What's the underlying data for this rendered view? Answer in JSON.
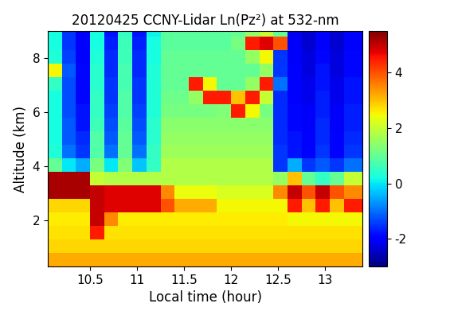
{
  "chart_data": {
    "type": "heatmap",
    "title": "20120425 CCNY-Lidar Ln(Pz²) at 532-nm",
    "x_label": "Local time (hour)",
    "y_label": "Altitude (km)",
    "color": "jet",
    "xlim": [
      10.05,
      13.4
    ],
    "ylim": [
      0.3,
      9.0
    ],
    "xticks": [
      10.5,
      11,
      11.5,
      12,
      12.5,
      13
    ],
    "yticks": [
      2,
      4,
      6,
      8
    ],
    "colorbar_range": [
      -3,
      5.5
    ],
    "colorbar_ticks": [
      -2,
      0,
      2,
      4
    ],
    "x_edges": [
      10.05,
      10.2,
      10.35,
      10.5,
      10.65,
      10.8,
      10.95,
      11.1,
      11.25,
      11.4,
      11.55,
      11.7,
      11.85,
      12.0,
      12.15,
      12.3,
      12.45,
      12.6,
      12.75,
      12.9,
      13.05,
      13.2,
      13.4
    ],
    "y_edges": [
      0.3,
      0.8,
      1.3,
      1.8,
      2.3,
      2.8,
      3.3,
      3.8,
      4.3,
      4.8,
      5.3,
      5.8,
      6.3,
      6.8,
      7.3,
      7.8,
      8.3,
      8.8,
      9.0
    ],
    "cells": [
      [
        3.2,
        3.2,
        3.2,
        3.2,
        3.2,
        3.2,
        3.2,
        3.2,
        3.2,
        3.2,
        3.2,
        3.2,
        3.2,
        3.2,
        3.2,
        3.2,
        3.2,
        3.2,
        3.2,
        3.2,
        3.2,
        3.2
      ],
      [
        2.8,
        2.8,
        2.8,
        2.8,
        2.8,
        2.8,
        2.8,
        2.8,
        2.8,
        2.8,
        2.8,
        2.8,
        2.8,
        2.8,
        2.8,
        2.8,
        2.8,
        2.8,
        2.8,
        2.8,
        2.8,
        2.8
      ],
      [
        2.7,
        2.7,
        2.7,
        4.5,
        2.7,
        2.7,
        2.7,
        2.7,
        2.7,
        2.7,
        2.7,
        2.7,
        2.7,
        2.7,
        2.7,
        2.7,
        2.7,
        2.7,
        2.7,
        2.7,
        2.7,
        2.7
      ],
      [
        2.6,
        2.6,
        2.6,
        5.0,
        3.5,
        2.6,
        2.6,
        2.6,
        2.6,
        2.6,
        2.6,
        2.6,
        2.6,
        2.6,
        2.6,
        2.6,
        2.6,
        2.5,
        2.5,
        2.5,
        2.5,
        2.5
      ],
      [
        2.8,
        2.8,
        2.8,
        5.0,
        4.8,
        4.8,
        4.8,
        4.8,
        4.0,
        3.2,
        3.2,
        3.2,
        2.5,
        2.5,
        2.5,
        2.5,
        2.5,
        4.5,
        3.0,
        4.5,
        3.0,
        4.5
      ],
      [
        5.2,
        5.2,
        5.2,
        5.0,
        4.8,
        4.8,
        4.8,
        4.8,
        3.5,
        2.4,
        2.4,
        2.4,
        2.2,
        2.2,
        2.2,
        2.2,
        3.5,
        5.0,
        4.0,
        5.0,
        4.0,
        3.5
      ],
      [
        5.2,
        5.2,
        5.2,
        2.0,
        1.8,
        1.8,
        1.8,
        1.8,
        1.8,
        1.8,
        1.8,
        1.8,
        1.8,
        1.8,
        1.8,
        1.8,
        1.5,
        3.0,
        1.0,
        0.5,
        1.0,
        2.0
      ],
      [
        1.0,
        0.0,
        -0.5,
        1.2,
        0.0,
        1.3,
        -0.3,
        0.5,
        1.8,
        1.8,
        1.8,
        1.8,
        1.8,
        1.8,
        1.8,
        1.8,
        -1.5,
        -0.5,
        -1.5,
        -1.2,
        -1.5,
        -1.0
      ],
      [
        0.3,
        -1.0,
        -1.5,
        0.8,
        -1.0,
        1.0,
        -1.0,
        0.5,
        1.6,
        1.6,
        1.6,
        1.6,
        1.6,
        1.6,
        1.6,
        1.6,
        -1.5,
        -1.8,
        -2.0,
        -1.5,
        -2.0,
        -1.5
      ],
      [
        0.2,
        -1.2,
        -1.6,
        0.8,
        -1.2,
        1.0,
        -1.2,
        0.4,
        1.5,
        1.5,
        1.5,
        1.5,
        1.5,
        1.5,
        1.5,
        1.5,
        -1.6,
        -1.8,
        -2.0,
        -1.6,
        -2.0,
        -1.6
      ],
      [
        0.2,
        -1.2,
        -1.8,
        0.6,
        -1.3,
        0.9,
        -1.3,
        0.4,
        1.4,
        1.4,
        1.4,
        1.4,
        1.4,
        1.4,
        1.4,
        1.4,
        -1.6,
        -1.9,
        -2.1,
        -1.6,
        -2.1,
        -1.7
      ],
      [
        0.2,
        -1.3,
        -1.8,
        0.5,
        -1.4,
        0.8,
        -1.4,
        0.3,
        1.2,
        1.2,
        1.2,
        1.2,
        1.3,
        4.5,
        2.5,
        1.2,
        -1.6,
        -1.9,
        -2.1,
        -1.7,
        -2.1,
        -1.7
      ],
      [
        0.2,
        -1.3,
        -1.9,
        0.5,
        -1.5,
        0.8,
        -1.5,
        0.3,
        1.1,
        1.1,
        1.5,
        4.5,
        4.5,
        3.0,
        4.5,
        2.0,
        -1.6,
        -2.0,
        -2.2,
        -1.7,
        -2.2,
        -1.8
      ],
      [
        0.5,
        -1.3,
        -1.9,
        0.4,
        -1.5,
        0.7,
        -1.5,
        0.3,
        1.0,
        1.0,
        4.5,
        2.5,
        1.0,
        1.0,
        1.5,
        4.5,
        -1.0,
        -2.0,
        -2.2,
        -1.8,
        -2.2,
        -1.8
      ],
      [
        2.5,
        -1.2,
        -1.9,
        0.4,
        -1.6,
        0.7,
        -1.6,
        0.3,
        1.0,
        1.0,
        1.0,
        1.0,
        1.0,
        1.0,
        1.0,
        1.5,
        -1.5,
        -2.0,
        -2.3,
        -1.8,
        -2.3,
        -1.9
      ],
      [
        0.3,
        -1.4,
        -2.0,
        0.3,
        -1.6,
        0.6,
        -1.6,
        0.2,
        1.0,
        1.0,
        1.0,
        1.0,
        1.0,
        1.0,
        1.5,
        2.5,
        -1.5,
        -2.1,
        -2.3,
        -1.9,
        -2.3,
        -1.9
      ],
      [
        0.2,
        -1.5,
        -2.0,
        0.2,
        -1.7,
        0.6,
        -1.7,
        0.2,
        0.9,
        0.9,
        0.9,
        0.9,
        0.9,
        1.2,
        4.5,
        4.8,
        4.0,
        -2.1,
        -2.4,
        -2.0,
        -2.4,
        -2.0
      ],
      [
        0.2,
        -1.5,
        -2.1,
        0.2,
        -1.8,
        0.5,
        -1.8,
        0.1,
        0.9,
        0.9,
        0.9,
        0.9,
        0.9,
        1.0,
        1.5,
        2.0,
        1.0,
        -2.2,
        -2.4,
        -2.0,
        -2.4,
        -2.0
      ]
    ]
  }
}
